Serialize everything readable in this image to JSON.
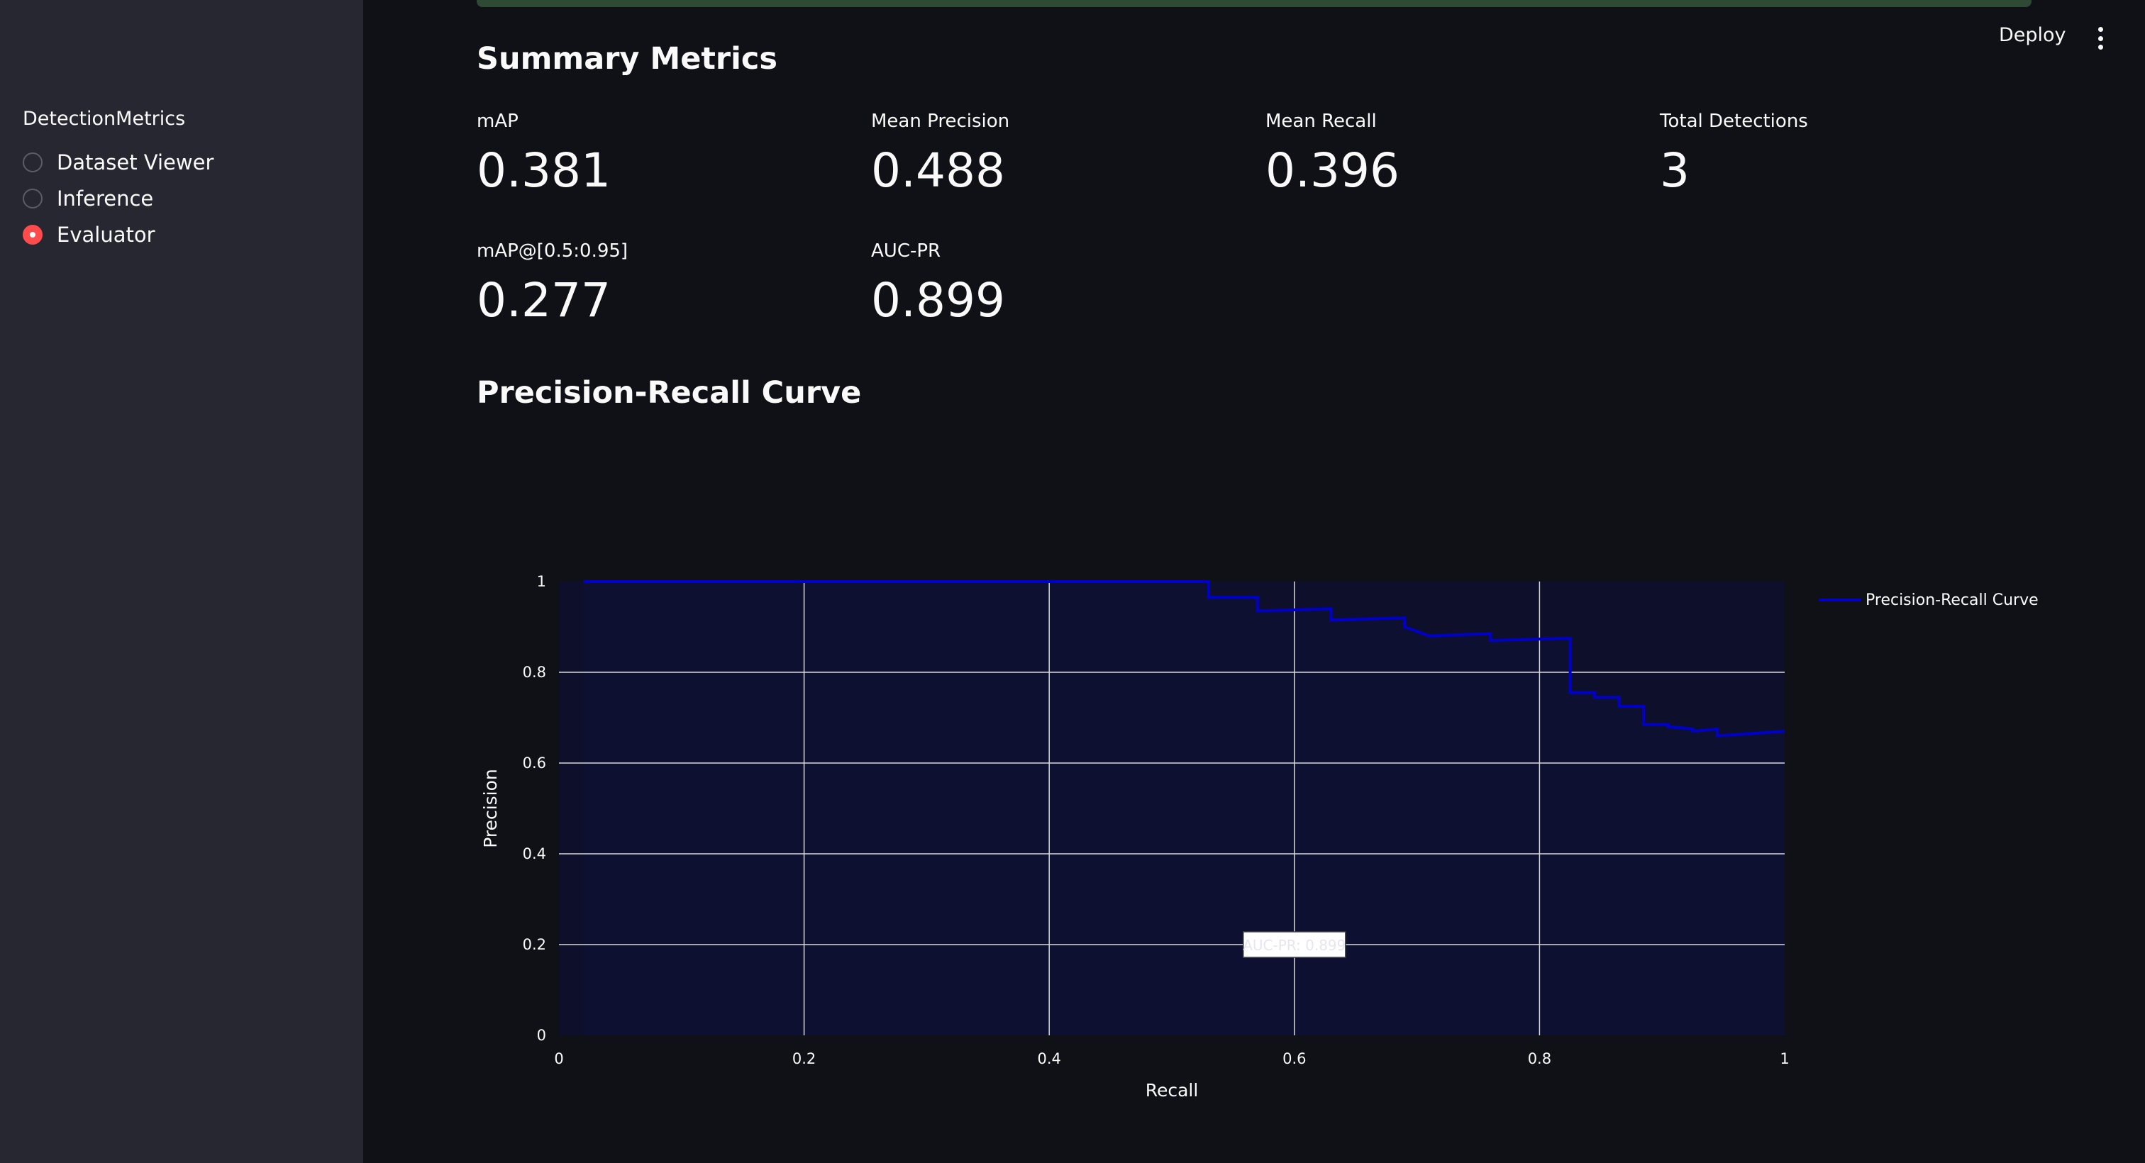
{
  "sidebar": {
    "title": "DetectionMetrics",
    "options": [
      {
        "label": "Dataset Viewer",
        "checked": false
      },
      {
        "label": "Inference",
        "checked": false
      },
      {
        "label": "Evaluator",
        "checked": true
      }
    ]
  },
  "header": {
    "deploy_label": "Deploy",
    "menu_icon": "vertical-ellipsis-icon"
  },
  "summary": {
    "title": "Summary Metrics",
    "metrics": [
      {
        "label": "mAP",
        "value": "0.381"
      },
      {
        "label": "Mean Precision",
        "value": "0.488"
      },
      {
        "label": "Mean Recall",
        "value": "0.396"
      },
      {
        "label": "Total Detections",
        "value": "3"
      },
      {
        "label": "mAP@[0.5:0.95]",
        "value": "0.277"
      },
      {
        "label": "AUC-PR",
        "value": "0.899"
      }
    ]
  },
  "pr_section": {
    "title": "Precision-Recall Curve"
  },
  "colors": {
    "accent": "#ff4b4b",
    "curve": "#0000cc",
    "plot_bg": "#0e0f2b",
    "sidebar_bg": "#262730",
    "page_bg": "#0f1116"
  },
  "chart_data": {
    "type": "line",
    "xlabel": "Recall",
    "ylabel": "Precision",
    "xlim": [
      0,
      1
    ],
    "ylim": [
      0,
      1
    ],
    "x_ticks": [
      "0",
      "0.2",
      "0.4",
      "0.6",
      "0.8",
      "1"
    ],
    "y_ticks": [
      "0",
      "0.2",
      "0.4",
      "0.6",
      "0.8",
      "1"
    ],
    "grid": true,
    "fill": "tozeroy",
    "legend_position": "top-right",
    "series": [
      {
        "name": "Precision-Recall Curve",
        "shape": "step",
        "x": [
          0.02,
          0.53,
          0.53,
          0.57,
          0.57,
          0.63,
          0.63,
          0.69,
          0.69,
          0.71,
          0.71,
          0.76,
          0.76,
          0.825,
          0.825,
          0.845,
          0.845,
          0.865,
          0.865,
          0.885,
          0.885,
          0.905,
          0.905,
          0.925,
          0.925,
          0.945,
          0.945,
          1.0
        ],
        "y": [
          1.0,
          1.0,
          0.965,
          0.965,
          0.935,
          0.94,
          0.915,
          0.92,
          0.9,
          0.88,
          0.88,
          0.885,
          0.87,
          0.875,
          0.755,
          0.755,
          0.745,
          0.745,
          0.725,
          0.725,
          0.685,
          0.685,
          0.68,
          0.675,
          0.67,
          0.675,
          0.66,
          0.67
        ]
      }
    ],
    "annotation": {
      "text": "AUC-PR: 0.899",
      "x": 0.6,
      "y": 0.2
    }
  }
}
